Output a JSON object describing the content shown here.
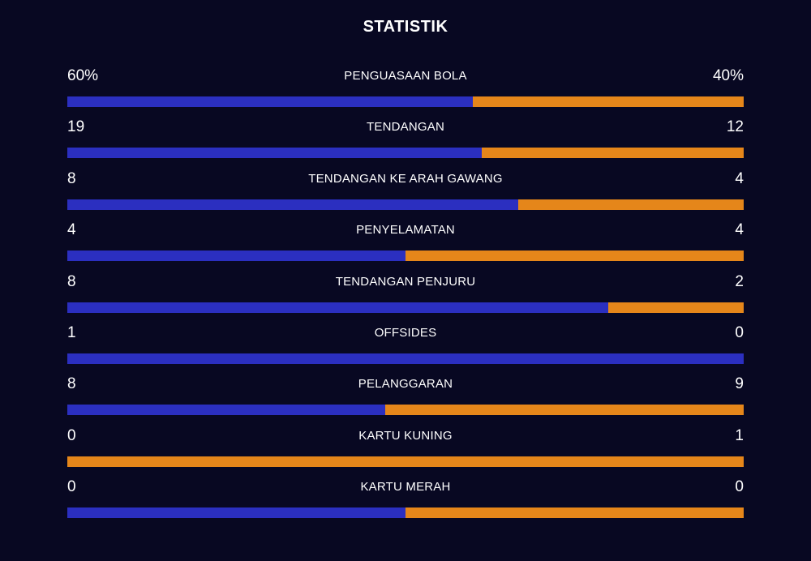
{
  "title": "STATISTIK",
  "colors": {
    "background": "#080822",
    "home": "#2b2fc0",
    "away": "#e5861a"
  },
  "stats": [
    {
      "label": "PENGUASAAN BOLA",
      "left": "60%",
      "right": "40%",
      "home_share": 0.6
    },
    {
      "label": "TENDANGAN",
      "left": "19",
      "right": "12",
      "home_share": 0.6129
    },
    {
      "label": "TENDANGAN KE ARAH GAWANG",
      "left": "8",
      "right": "4",
      "home_share": 0.6667
    },
    {
      "label": "PENYELAMATAN",
      "left": "4",
      "right": "4",
      "home_share": 0.5
    },
    {
      "label": "TENDANGAN PENJURU",
      "left": "8",
      "right": "2",
      "home_share": 0.8
    },
    {
      "label": "OFFSIDES",
      "left": "1",
      "right": "0",
      "home_share": 1.0
    },
    {
      "label": "PELANGGARAN",
      "left": "8",
      "right": "9",
      "home_share": 0.4706
    },
    {
      "label": "KARTU KUNING",
      "left": "0",
      "right": "1",
      "home_share": 0.0
    },
    {
      "label": "KARTU MERAH",
      "left": "0",
      "right": "0",
      "home_share": 0.5
    }
  ]
}
